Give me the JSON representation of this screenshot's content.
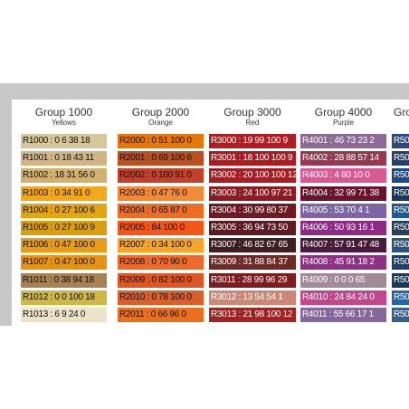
{
  "columns": [
    {
      "title": "Group 1000",
      "subtitle": "Yellows",
      "text_color": "#111111",
      "chips": [
        {
          "code": "R1000 : 0 6 38 18",
          "color": "#d6c79a"
        },
        {
          "code": "R1001 : 0 18 43 11",
          "color": "#d2b585"
        },
        {
          "code": "R1002 : 18 31 56 0",
          "color": "#d2b070"
        },
        {
          "code": "R1003 : 0 34 91 0",
          "color": "#f3a81b"
        },
        {
          "code": "R1004 : 0 27 100 6",
          "color": "#e4a50f"
        },
        {
          "code": "R1005 : 0 27 100 9",
          "color": "#d99d10"
        },
        {
          "code": "R1006 : 0 47 100 0",
          "color": "#e89b15"
        },
        {
          "code": "R1007 : 0 47 100 0",
          "color": "#e59216"
        },
        {
          "code": "R1011 : 0 38 94 18",
          "color": "#a88255"
        },
        {
          "code": "R1012 : 0 0 100 18",
          "color": "#ceb743"
        },
        {
          "code": "R1013 : 6 9 24 0",
          "color": "#ece3c8"
        }
      ]
    },
    {
      "title": "Group 2000",
      "subtitle": "Orange",
      "text_color": "#111111",
      "chips": [
        {
          "code": "R2000 : 0 51 100 0",
          "color": "#e5770d"
        },
        {
          "code": "R2001 : 0 69 100 6",
          "color": "#b9501f"
        },
        {
          "code": "R2002 : 0 100 91 0",
          "color": "#c1412d"
        },
        {
          "code": "R2003 : 0 47 76 0",
          "color": "#f48935"
        },
        {
          "code": "R2004 : 0 65 87 0",
          "color": "#ef6d23"
        },
        {
          "code": "R2005 : 84 100 0",
          "color": "#f3561a"
        },
        {
          "code": "R2007 : 0 34 100 0",
          "color": "#f5a52b"
        },
        {
          "code": "R2008 : 0 70 90 0",
          "color": "#ec6b2c"
        },
        {
          "code": "R2009 : 0 82 100 0",
          "color": "#dd5623"
        },
        {
          "code": "R2010 : 0 78 100 0",
          "color": "#d9602a"
        },
        {
          "code": "R2011 : 0 66 96 0",
          "color": "#e97020"
        }
      ]
    },
    {
      "title": "Group 3000",
      "subtitle": "Red",
      "text_color": "#ffffff",
      "chips": [
        {
          "code": "R3000 : 19 99 100 9",
          "color": "#ad1f24"
        },
        {
          "code": "R3001 : 18 100 100 9",
          "color": "#a91c22"
        },
        {
          "code": "R3002 : 20 100 100 12",
          "color": "#a41e24"
        },
        {
          "code": "R3003 : 24 100 97 21",
          "color": "#8d1b22"
        },
        {
          "code": "R3004 : 30 99 80 37",
          "color": "#6e1a23"
        },
        {
          "code": "R3005 : 36 94 73 50",
          "color": "#5c1a22"
        },
        {
          "code": "R3007 : 46 82 67 65",
          "color": "#3f1f22"
        },
        {
          "code": "R3009 : 31 88 84 37",
          "color": "#6d2a27"
        },
        {
          "code": "R3011 : 28 99 96 29",
          "color": "#7c1d22"
        },
        {
          "code": "R3012 : 13 54 54 1",
          "color": "#cc8877"
        },
        {
          "code": "R3013 : 21 98 100 12",
          "color": "#9b2424"
        }
      ]
    },
    {
      "title": "Group 4000",
      "subtitle": "Purple",
      "text_color": "#ffffff",
      "chips": [
        {
          "code": "R4001 : 46 73 23 2",
          "color": "#8c6a93"
        },
        {
          "code": "R4002 : 28 88 57 14",
          "color": "#933a50"
        },
        {
          "code": "R4003 : 4 80 10 0",
          "color": "#d85a95"
        },
        {
          "code": "R4004 : 32 99 71 38",
          "color": "#68142e"
        },
        {
          "code": "R4005 : 53 70 4 1",
          "color": "#7c64a5"
        },
        {
          "code": "R4006 : 50 93 16 1",
          "color": "#8c2b84"
        },
        {
          "code": "R4007 : 57 91 47 48",
          "color": "#4a1a3c"
        },
        {
          "code": "R4008 : 45 91 18 2",
          "color": "#8c3283"
        },
        {
          "code": "R4009 : 0 0 0 65",
          "color": "#a38a98"
        },
        {
          "code": "R4010 : 24 84 24 0",
          "color": "#c1488b"
        },
        {
          "code": "R4011 : 55 66 17 1",
          "color": "#85679a"
        }
      ]
    },
    {
      "title": "Gro",
      "subtitle": "",
      "text_color": "#ffffff",
      "chips": [
        {
          "code": "R50",
          "color": "#2c4a7d"
        },
        {
          "code": "R50",
          "color": "#283e6a"
        },
        {
          "code": "R50",
          "color": "#1f4a86"
        },
        {
          "code": "R50",
          "color": "#1b365d"
        },
        {
          "code": "R50",
          "color": "#1c5a98"
        },
        {
          "code": "R50",
          "color": "#2a3f5c"
        },
        {
          "code": "R50",
          "color": "#2a5580"
        },
        {
          "code": "R50",
          "color": "#1f3e66"
        },
        {
          "code": "R50",
          "color": "#1d3a5a"
        },
        {
          "code": "R50",
          "color": "#2566a8"
        },
        {
          "code": "R50",
          "color": "#3a5f8a"
        }
      ]
    }
  ]
}
